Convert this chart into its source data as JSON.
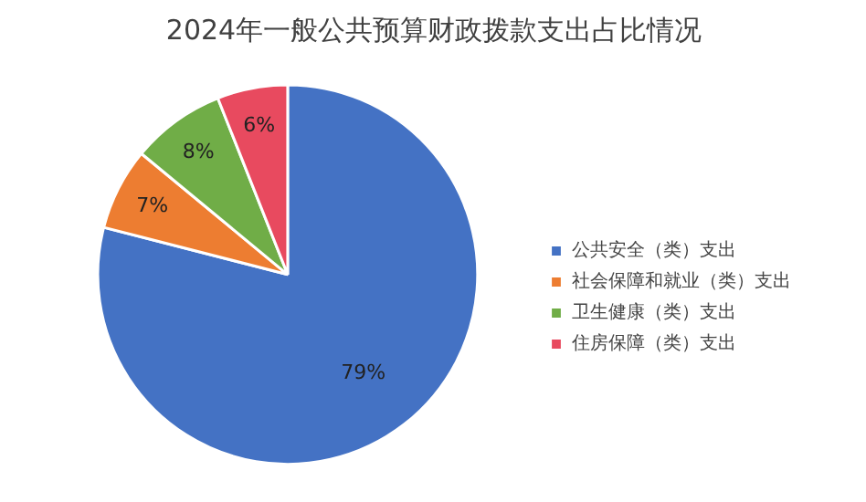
{
  "chart_data": {
    "type": "pie",
    "title": "2024年一般公共预算财政拨款支出占比情况",
    "categories": [
      "公共安全（类）支出",
      "社会保障和就业（类）支出",
      "卫生健康（类）支出",
      "住房保障（类）支出"
    ],
    "values": [
      79,
      7,
      8,
      6
    ],
    "colors": [
      "#4472c4",
      "#ed7d31",
      "#70ad47",
      "#e84a5f"
    ],
    "value_labels": [
      "79%",
      "7%",
      "8%",
      "6%"
    ],
    "legend": "right"
  }
}
